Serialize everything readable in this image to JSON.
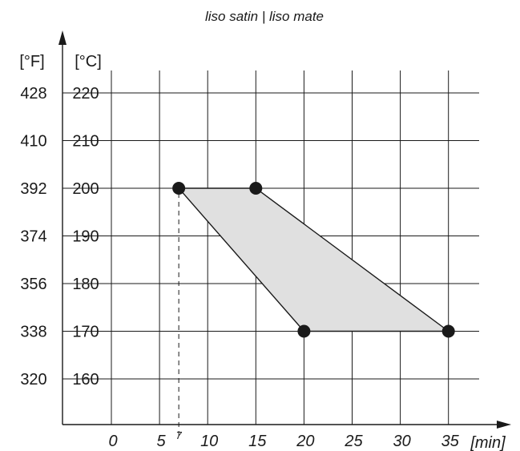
{
  "chart_data": {
    "type": "area",
    "title": "liso satin | liso mate",
    "xlabel": "[min]",
    "ylabel_celsius": "[°C]",
    "ylabel_fahrenheit": "[°F]",
    "x_ticks": [
      0,
      5,
      10,
      15,
      20,
      25,
      30,
      35
    ],
    "x_marker": 7,
    "y_ticks_celsius": [
      160,
      170,
      180,
      190,
      200,
      210,
      220
    ],
    "y_ticks_fahrenheit": [
      320,
      338,
      356,
      374,
      392,
      410,
      428
    ],
    "xlim": [
      -5,
      39
    ],
    "ylim": [
      150,
      227
    ],
    "grid": true,
    "region": {
      "points": [
        {
          "x": 7,
          "y": 200
        },
        {
          "x": 15,
          "y": 200
        },
        {
          "x": 35,
          "y": 170
        },
        {
          "x": 20,
          "y": 170
        }
      ],
      "color": "#e0e0e0"
    }
  }
}
